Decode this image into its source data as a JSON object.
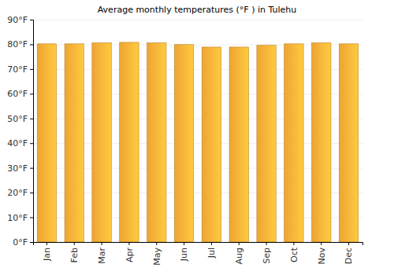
{
  "chart_data": {
    "type": "bar",
    "title": "Average monthly temperatures (°F ) in Tulehu",
    "categories": [
      "Jan",
      "Feb",
      "Mar",
      "Apr",
      "May",
      "Jun",
      "Jul",
      "Aug",
      "Sep",
      "Oct",
      "Nov",
      "Dec"
    ],
    "values": [
      80.2,
      80.2,
      80.6,
      80.8,
      80.6,
      79.9,
      78.9,
      78.9,
      79.6,
      80.2,
      80.6,
      80.2
    ],
    "color": "#fbad36",
    "ylim": [
      0,
      90
    ],
    "yticks": [
      {
        "value": 0,
        "label": "0°F"
      },
      {
        "value": 10,
        "label": "10°F"
      },
      {
        "value": 20,
        "label": "20°F"
      },
      {
        "value": 30,
        "label": "30°F"
      },
      {
        "value": 40,
        "label": "40°F"
      },
      {
        "value": 50,
        "label": "50°F"
      },
      {
        "value": 60,
        "label": "60°F"
      },
      {
        "value": 70,
        "label": "70°F"
      },
      {
        "value": 80,
        "label": "80°F"
      },
      {
        "value": 90,
        "label": "90°F"
      }
    ],
    "grid": true
  }
}
